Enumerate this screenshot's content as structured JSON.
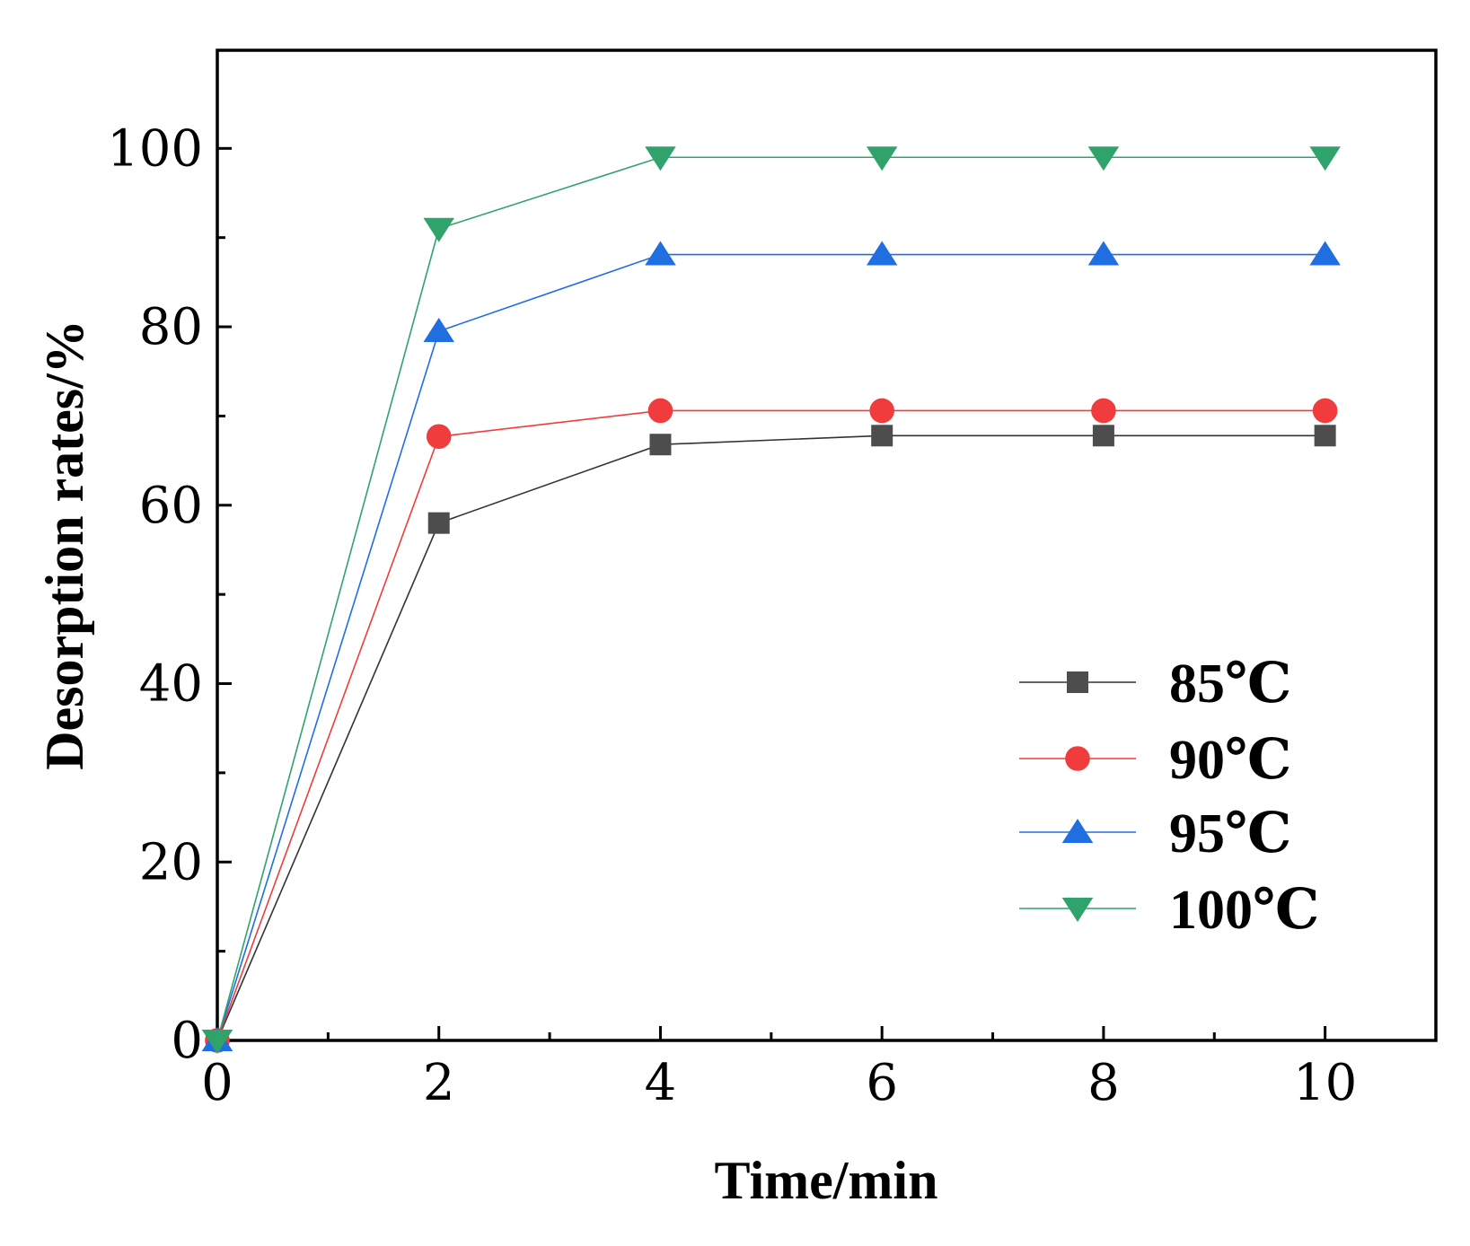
{
  "chart_data": {
    "type": "line",
    "xlabel": "Time/min",
    "ylabel": "Desorption rates/%",
    "xlim": [
      0,
      11
    ],
    "ylim": [
      0,
      111
    ],
    "x_ticks": [
      0,
      2,
      4,
      6,
      8,
      10
    ],
    "x_tick_labels": [
      "0",
      "2",
      "4",
      "6",
      "8",
      "10"
    ],
    "x_minor_ticks": [
      1,
      3,
      5,
      7,
      9
    ],
    "y_ticks": [
      0,
      20,
      40,
      60,
      80,
      100
    ],
    "y_tick_labels": [
      "0",
      "20",
      "40",
      "60",
      "80",
      "100"
    ],
    "y_minor_ticks": [
      10,
      30,
      50,
      70,
      90
    ],
    "grid": false,
    "legend_position": "lower-right",
    "x": [
      0,
      2,
      4,
      6,
      8,
      10
    ],
    "series": [
      {
        "name": "85℃",
        "marker": "square",
        "color": "#4d4d4d",
        "line_color": "#333333",
        "values": [
          0,
          58,
          66.8,
          67.8,
          67.8,
          67.8
        ]
      },
      {
        "name": "90℃",
        "marker": "circle",
        "color": "#f03c3c",
        "line_color": "#f03c3c",
        "values": [
          0,
          67.7,
          70.6,
          70.6,
          70.6,
          70.6
        ]
      },
      {
        "name": "95℃",
        "marker": "triangle-up",
        "color": "#1f6fe0",
        "line_color": "#1f6fe0",
        "values": [
          0,
          79.5,
          88.1,
          88.1,
          88.1,
          88.1
        ]
      },
      {
        "name": "100℃",
        "marker": "triangle-down",
        "color": "#2fa36b",
        "line_color": "#2fa36b",
        "values": [
          0,
          91,
          99,
          99,
          99,
          99
        ]
      }
    ]
  }
}
